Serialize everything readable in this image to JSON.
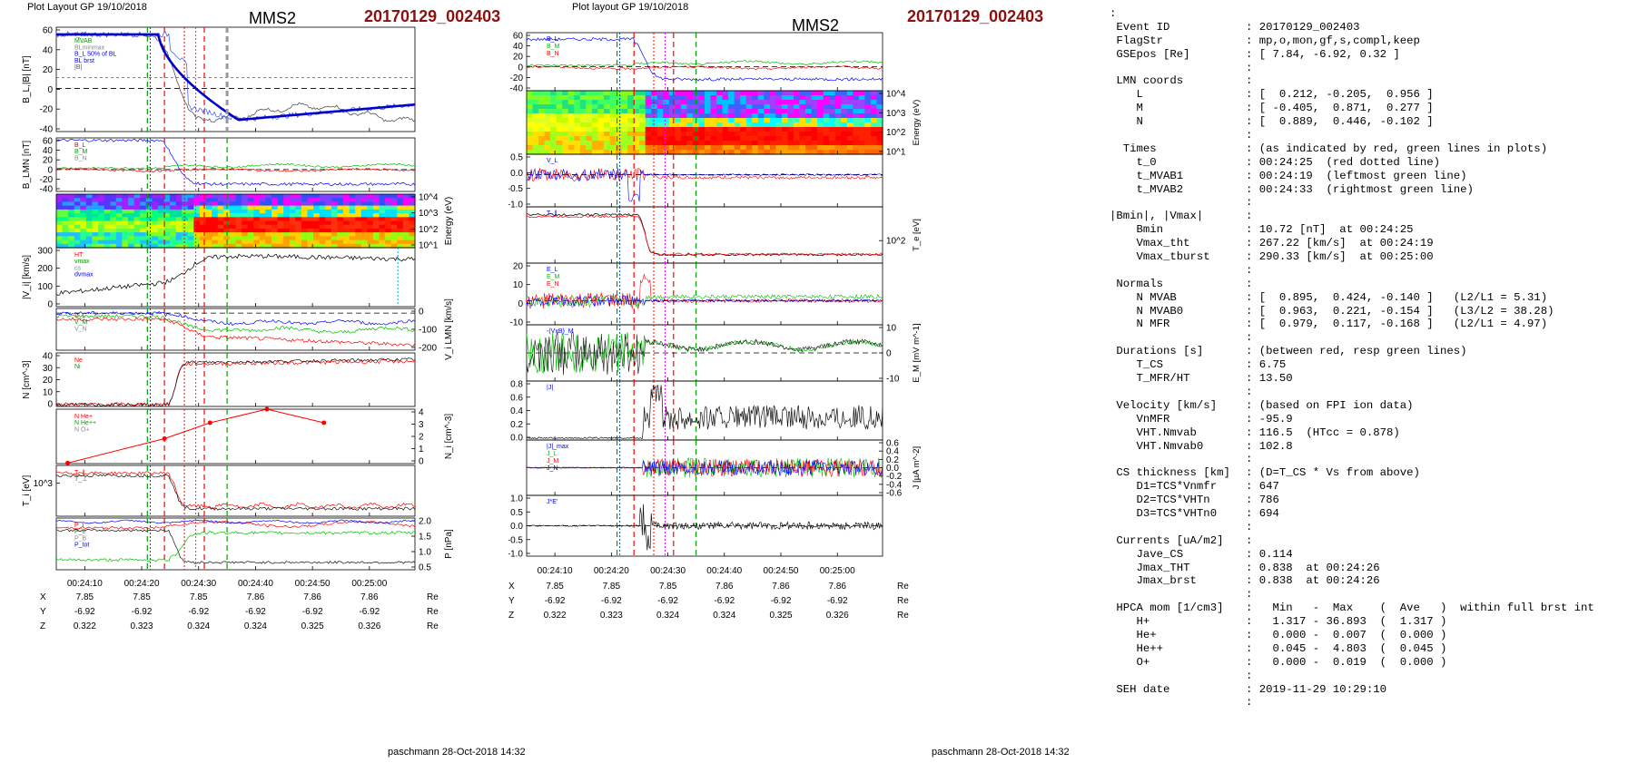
{
  "page": {
    "left": {
      "header": "Plot Layout GP 19/10/2018",
      "spacecraft": "MMS2",
      "event": "20170129_002403",
      "footer": "paschmann 28-Oct-2018 14:32",
      "time_ticks": [
        "00:24:10",
        "00:24:20",
        "00:24:30",
        "00:24:40",
        "00:24:50",
        "00:25:00"
      ],
      "position_table": {
        "rows": [
          {
            "label": "X",
            "values": [
              "7.85",
              "7.85",
              "7.85",
              "7.86",
              "7.86",
              "7.86"
            ],
            "unit": "Re"
          },
          {
            "label": "Y",
            "values": [
              "-6.92",
              "-6.92",
              "-6.92",
              "-6.92",
              "-6.92",
              "-6.92"
            ],
            "unit": "Re"
          },
          {
            "label": "Z",
            "values": [
              "0.322",
              "0.323",
              "0.324",
              "0.324",
              "0.325",
              "0.326"
            ],
            "unit": "Re"
          }
        ]
      }
    },
    "right": {
      "header": "Plot layout GP 19/10/2018",
      "spacecraft": "MMS2",
      "event": "20170129_002403",
      "footer": "paschmann 28-Oct-2018 14:32",
      "time_ticks": [
        "00:24:10",
        "00:24:20",
        "00:24:30",
        "00:24:40",
        "00:24:50",
        "00:25:00"
      ],
      "position_table": {
        "rows": [
          {
            "label": "X",
            "values": [
              "7.85",
              "7.85",
              "7.85",
              "7.86",
              "7.86",
              "7.86"
            ],
            "unit": "Re"
          },
          {
            "label": "Y",
            "values": [
              "-6.92",
              "-6.92",
              "-6.92",
              "-6.92",
              "-6.92",
              "-6.92"
            ],
            "unit": "Re"
          },
          {
            "label": "Z",
            "values": [
              "0.322",
              "0.323",
              "0.324",
              "0.324",
              "0.325",
              "0.326"
            ],
            "unit": "Re"
          }
        ]
      }
    }
  },
  "info_panel": [
    {
      "k": ":",
      "v": ""
    },
    {
      "k": " Event ID",
      "v": ": 20170129_002403"
    },
    {
      "k": " FlagStr",
      "v": ": mp,o,mon,gf,s,compl,keep"
    },
    {
      "k": " GSEpos [Re]",
      "v": ": [ 7.84, -6.92, 0.32 ]"
    },
    {
      "k": "",
      "v": ":"
    },
    {
      "k": " LMN coords",
      "v": ":"
    },
    {
      "k": "    L",
      "v": ": [  0.212, -0.205,  0.956 ]"
    },
    {
      "k": "    M",
      "v": ": [ -0.405,  0.871,  0.277 ]"
    },
    {
      "k": "    N",
      "v": ": [  0.889,  0.446, -0.102 ]"
    },
    {
      "k": "",
      "v": ":"
    },
    {
      "k": "  Times",
      "v": ": (as indicated by red, green lines in plots)"
    },
    {
      "k": "    t_0",
      "v": ": 00:24:25  (red dotted line)"
    },
    {
      "k": "    t_MVAB1",
      "v": ": 00:24:19  (leftmost green line)"
    },
    {
      "k": "    t_MVAB2",
      "v": ": 00:24:33  (rightmost green line)"
    },
    {
      "k": "",
      "v": ":"
    },
    {
      "k": "|Bmin|, |Vmax|",
      "v": ":"
    },
    {
      "k": "    Bmin",
      "v": ": 10.72 [nT]  at 00:24:25"
    },
    {
      "k": "    Vmax_tht",
      "v": ": 267.22 [km/s]  at 00:24:19"
    },
    {
      "k": "    Vmax_tburst",
      "v": ": 290.33 [km/s]  at 00:25:00"
    },
    {
      "k": "",
      "v": ":"
    },
    {
      "k": " Normals",
      "v": ":"
    },
    {
      "k": "    N MVAB",
      "v": ": [  0.895,  0.424, -0.140 ]   (L2/L1 = 5.31)"
    },
    {
      "k": "    N MVAB0",
      "v": ": [  0.963,  0.221, -0.154 ]   (L3/L2 = 38.28)"
    },
    {
      "k": "    N MFR",
      "v": ": [  0.979,  0.117, -0.168 ]   (L2/L1 = 4.97)"
    },
    {
      "k": "",
      "v": ":"
    },
    {
      "k": " Durations [s]",
      "v": ": (between red, resp green lines)"
    },
    {
      "k": "    T_CS",
      "v": ": 6.75"
    },
    {
      "k": "    T_MFR/HT",
      "v": ": 13.50"
    },
    {
      "k": "",
      "v": ":"
    },
    {
      "k": " Velocity [km/s]",
      "v": ": (based on FPI ion data)"
    },
    {
      "k": "    VnMFR",
      "v": ": -95.9"
    },
    {
      "k": "    VHT.Nmvab",
      "v": ": 116.5  (HTcc = 0.878)"
    },
    {
      "k": "    VHT.Nmvab0",
      "v": ": 102.8"
    },
    {
      "k": "",
      "v": ":"
    },
    {
      "k": " CS thickness [km]",
      "v": ": (D=T_CS * Vs from above)"
    },
    {
      "k": "    D1=TCS*Vnmfr",
      "v": ": 647"
    },
    {
      "k": "    D2=TCS*VHTn",
      "v": ": 786"
    },
    {
      "k": "    D3=TCS*VHTn0",
      "v": ": 694"
    },
    {
      "k": "",
      "v": ":"
    },
    {
      "k": " Currents [uA/m2]",
      "v": ":"
    },
    {
      "k": "    Jave_CS",
      "v": ": 0.114"
    },
    {
      "k": "    Jmax_THT",
      "v": ": 0.838  at 00:24:26"
    },
    {
      "k": "    Jmax_brst",
      "v": ": 0.838  at 00:24:26"
    },
    {
      "k": "",
      "v": ":"
    },
    {
      "k": " HPCA mom [1/cm3]",
      "v": ":   Min   -  Max    (  Ave   )  within full brst int"
    },
    {
      "k": "    H+",
      "v": ":   1.317 - 36.893  (  1.317 )"
    },
    {
      "k": "    He+",
      "v": ":   0.000 -  0.007  (  0.000 )"
    },
    {
      "k": "    He++",
      "v": ":   0.045 -  4.803  (  0.045 )"
    },
    {
      "k": "    O+",
      "v": ":   0.000 -  0.019  (  0.000 )"
    },
    {
      "k": "",
      "v": ":"
    },
    {
      "k": " SEH date",
      "v": ": 2019-11-29 10:29:10"
    },
    {
      "k": "",
      "v": ":"
    }
  ],
  "chart_data": [
    {
      "type": "line",
      "figure": "left",
      "panels": [
        {
          "ylabel": "B_L,|B| [nT]",
          "yticks": [
            "60",
            "40",
            "20",
            "0",
            "-20",
            "-40"
          ],
          "legend": [
            "t_cs",
            "MVAB",
            "BLminmax",
            "B_L 50% of BL",
            "BL brst",
            "|B|"
          ],
          "series": [
            {
              "name": "B_L",
              "color": "#0000ff"
            },
            {
              "name": "|B|",
              "color": "#555555"
            }
          ]
        },
        {
          "ylabel": "B_LMN [nT]",
          "yticks": [
            "60",
            "40",
            "20",
            "0",
            "-20",
            "-40"
          ],
          "legend": [
            "B_L",
            "B_M",
            "B_N"
          ]
        },
        {
          "ylabel": "Energy (eV)",
          "yticks": [
            "10^4",
            "10^3",
            "10^2",
            "10^1"
          ],
          "type": "spectrogram"
        },
        {
          "ylabel": "|V_i| [km/s]",
          "yticks": [
            "300",
            "200",
            "100",
            "0"
          ],
          "legend": [
            "HT",
            "vmax",
            "cs",
            "dvmax"
          ]
        },
        {
          "ylabel": "V_i LMN [km/s]",
          "yticks": [
            "0",
            "-100",
            "-200"
          ],
          "legend": [
            "V_L",
            "V_M",
            "V_N"
          ]
        },
        {
          "ylabel": "N [cm^-3]",
          "yticks": [
            "40",
            "30",
            "20",
            "10",
            "0"
          ],
          "legend": [
            "Ne",
            "Ni"
          ]
        },
        {
          "ylabel": "N_i [cm^-3]",
          "yticks": [
            "4",
            "3",
            "2",
            "1",
            "0"
          ],
          "legend": [
            "N He+",
            "N He++",
            "N O+"
          ],
          "series": [
            {
              "name": "N He++",
              "x": [
                "00:24:05",
                "00:24:22",
                "00:24:30",
                "00:24:40",
                "00:24:50"
              ],
              "values": [
                0.05,
                2.2,
                3.6,
                4.8,
                3.6
              ]
            }
          ]
        },
        {
          "ylabel": "T_i [eV]",
          "yticks": [
            "10^3"
          ],
          "legend": [
            "T_∥",
            "T_⊥"
          ]
        },
        {
          "ylabel": "P [nPa]",
          "yticks": [
            "2.0",
            "1.5",
            "1.0",
            "0.5"
          ],
          "legend": [
            "P_i",
            "P_e",
            "P_B",
            "P_tot"
          ]
        }
      ],
      "xticks": [
        "00:24:10",
        "00:24:20",
        "00:24:30",
        "00:24:40",
        "00:24:50",
        "00:25:00"
      ]
    },
    {
      "type": "line",
      "figure": "right",
      "panels": [
        {
          "ylabel": "B_LMN [nT]",
          "yticks": [
            "60",
            "40",
            "20",
            "0",
            "-20",
            "-40"
          ],
          "legend": [
            "B_L",
            "B_M",
            "B_N"
          ]
        },
        {
          "ylabel": "Energy (eV)",
          "yticks": [
            "10^4",
            "10^3",
            "10^2",
            "10^1"
          ],
          "type": "spectrogram"
        },
        {
          "ylabel": "V_e LMN [km/s] (x10^3)",
          "yticks": [
            "0.5",
            "0.0",
            "-0.5",
            "-1.0"
          ],
          "legend": [
            "V_L"
          ]
        },
        {
          "ylabel": "T_e [eV]",
          "yticks": [
            "10^2"
          ],
          "legend": [
            "T_∥"
          ]
        },
        {
          "ylabel": "E_LMN [mV m^-1]",
          "yticks": [
            "20",
            "10",
            "0",
            "-10"
          ],
          "legend": [
            "E_L",
            "E_M",
            "E_N"
          ]
        },
        {
          "ylabel": "E_M [mV m^-1]",
          "yticks": [
            "10",
            "0",
            "-10"
          ],
          "legend": [
            "-(VxB)_M"
          ]
        },
        {
          "ylabel": "|J| [µA m^-2]",
          "yticks": [
            "0.8",
            "0.6",
            "0.4",
            "0.2",
            "0.0"
          ],
          "legend": [
            "|J|"
          ]
        },
        {
          "ylabel": "J [µA m^-2]",
          "yticks": [
            "0.6",
            "0.4",
            "0.2",
            "0.0",
            "-0.2",
            "-0.4",
            "-0.6"
          ],
          "legend": [
            "|J|_max",
            "J_L",
            "J_M",
            "J_N"
          ]
        },
        {
          "ylabel": "J*E' [nW m^-3]",
          "yticks": [
            "1.0",
            "0.5",
            "0.0",
            "-0.5",
            "-1.0"
          ],
          "legend": [
            "J*E'"
          ]
        }
      ],
      "xticks": [
        "00:24:10",
        "00:24:20",
        "00:24:30",
        "00:24:40",
        "00:24:50",
        "00:25:00"
      ]
    }
  ]
}
